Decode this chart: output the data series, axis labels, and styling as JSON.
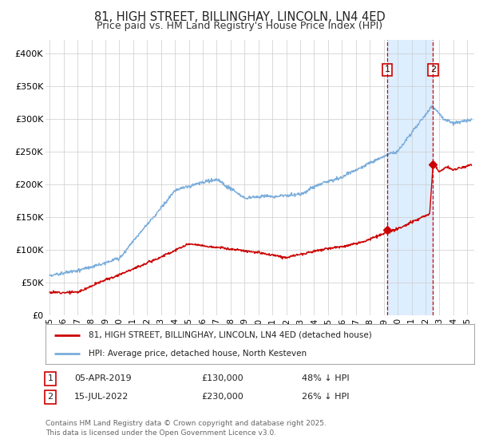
{
  "title": "81, HIGH STREET, BILLINGHAY, LINCOLN, LN4 4ED",
  "subtitle": "Price paid vs. HM Land Registry's House Price Index (HPI)",
  "title_fontsize": 10.5,
  "subtitle_fontsize": 9,
  "ylabel_ticks": [
    "£0",
    "£50K",
    "£100K",
    "£150K",
    "£200K",
    "£250K",
    "£300K",
    "£350K",
    "£400K"
  ],
  "ytick_values": [
    0,
    50000,
    100000,
    150000,
    200000,
    250000,
    300000,
    350000,
    400000
  ],
  "ylim": [
    0,
    420000
  ],
  "xlim_start": 1994.7,
  "xlim_end": 2025.5,
  "background_color": "#ffffff",
  "plot_bg_color": "#ffffff",
  "grid_color": "#cccccc",
  "hpi_color": "#7aaddb",
  "price_color": "#cc0000",
  "sale1_date": 2019.26,
  "sale1_price": 130000,
  "sale2_date": 2022.54,
  "sale2_price": 230000,
  "shade_start": 2019.26,
  "shade_end": 2022.54,
  "shade_color": "#ddeeff",
  "vline1_color": "#cc0000",
  "vline2_color": "#cc0000",
  "box1_color": "#cc0000",
  "box2_color": "#cc0000",
  "legend1_label": "81, HIGH STREET, BILLINGHAY, LINCOLN, LN4 4ED (detached house)",
  "legend2_label": "HPI: Average price, detached house, North Kesteven",
  "table_row1": [
    "1",
    "05-APR-2019",
    "£130,000",
    "48% ↓ HPI"
  ],
  "table_row2": [
    "2",
    "15-JUL-2022",
    "£230,000",
    "26% ↓ HPI"
  ],
  "footnote": "Contains HM Land Registry data © Crown copyright and database right 2025.\nThis data is licensed under the Open Government Licence v3.0.",
  "footnote_fontsize": 6.5,
  "xtick_labels": [
    "95",
    "96",
    "97",
    "98",
    "99",
    "00",
    "01",
    "02",
    "03",
    "04",
    "05",
    "06",
    "07",
    "08",
    "09",
    "10",
    "11",
    "12",
    "13",
    "14",
    "15",
    "16",
    "17",
    "18",
    "19",
    "20",
    "21",
    "22",
    "23",
    "24",
    "25"
  ],
  "xtick_years": [
    1995,
    1996,
    1997,
    1998,
    1999,
    2000,
    2001,
    2002,
    2003,
    2004,
    2005,
    2006,
    2007,
    2008,
    2009,
    2010,
    2011,
    2012,
    2013,
    2014,
    2015,
    2016,
    2017,
    2018,
    2019,
    2020,
    2021,
    2022,
    2023,
    2024,
    2025
  ]
}
